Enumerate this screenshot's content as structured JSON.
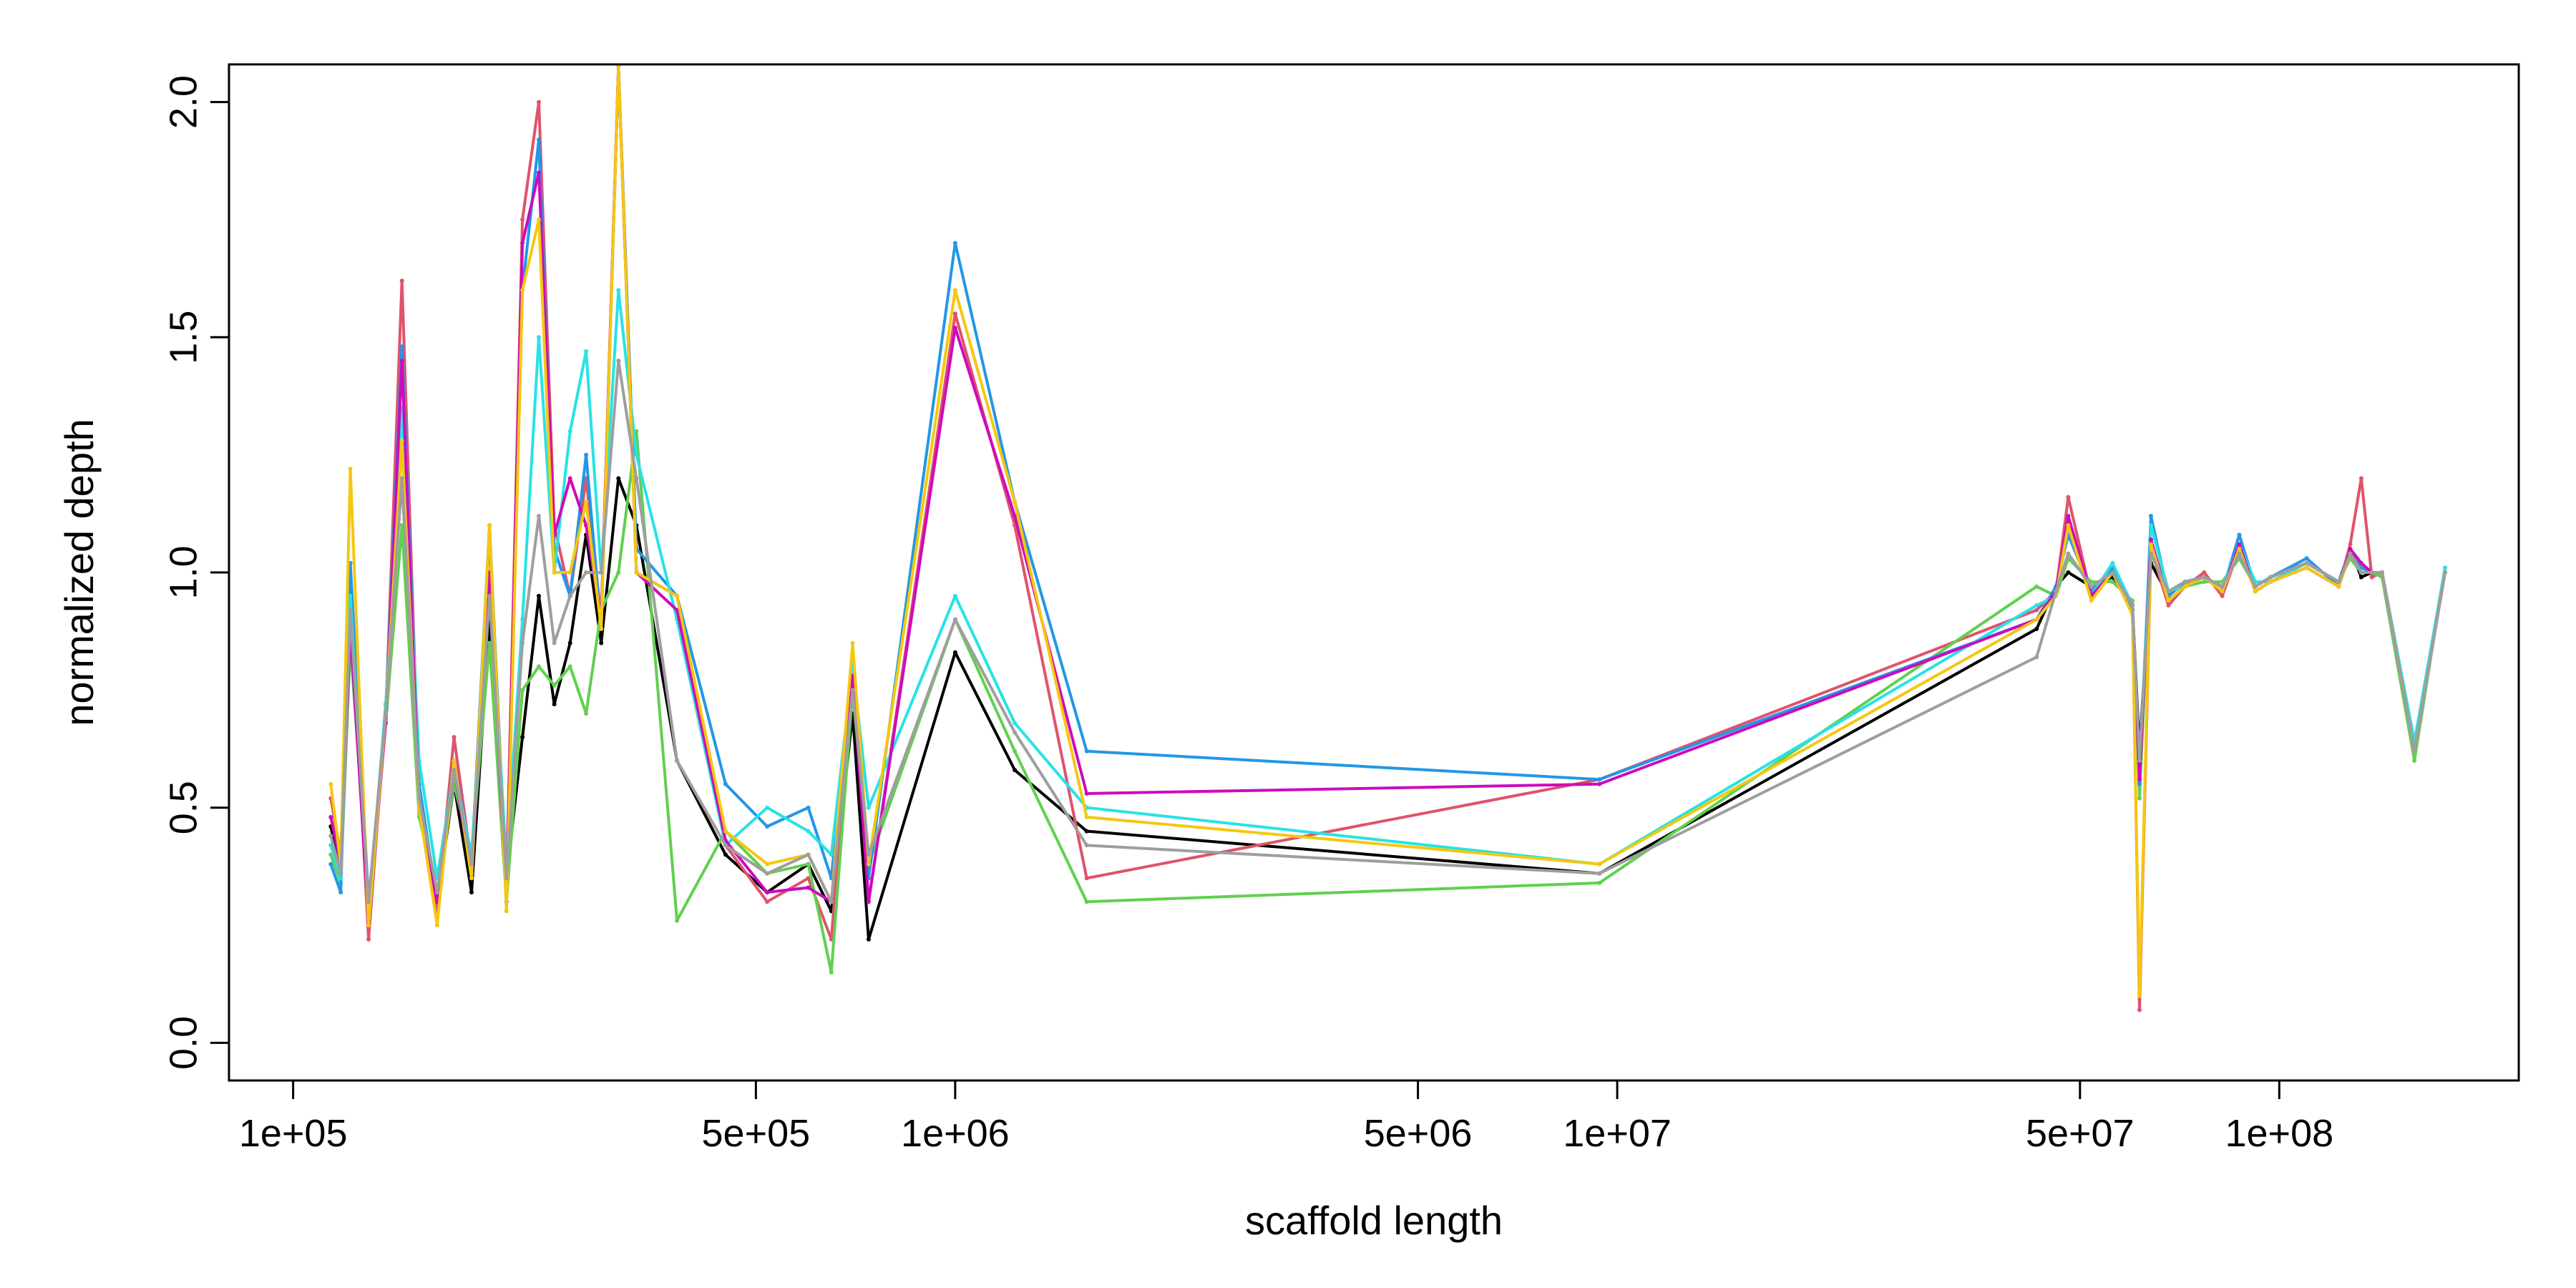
{
  "chart_data": {
    "type": "line",
    "title": "",
    "xlabel": "scaffold length",
    "ylabel": "normalized depth",
    "x_scale": "log",
    "xlim": [
      80000,
      230000000
    ],
    "ylim": [
      -0.08,
      2.08
    ],
    "x_ticks": [
      {
        "value": 100000,
        "label": "1e+05"
      },
      {
        "value": 500000,
        "label": "5e+05"
      },
      {
        "value": 1000000,
        "label": "1e+06"
      },
      {
        "value": 5000000,
        "label": "5e+06"
      },
      {
        "value": 10000000,
        "label": "1e+07"
      },
      {
        "value": 50000000,
        "label": "5e+07"
      },
      {
        "value": 100000000,
        "label": "1e+08"
      }
    ],
    "y_ticks": [
      {
        "value": 0.0,
        "label": "0.0"
      },
      {
        "value": 0.5,
        "label": "0.5"
      },
      {
        "value": 1.0,
        "label": "1.0"
      },
      {
        "value": 1.5,
        "label": "1.5"
      },
      {
        "value": 2.0,
        "label": "2.0"
      }
    ],
    "legend": "none",
    "grid": false,
    "x": [
      114000,
      118000,
      122000,
      130000,
      138000,
      146000,
      155000,
      165000,
      175000,
      186000,
      198000,
      210000,
      222000,
      235000,
      248000,
      262000,
      277000,
      292000,
      310000,
      330000,
      380000,
      450000,
      520000,
      600000,
      650000,
      700000,
      740000,
      1000000,
      1230000,
      1580000,
      9400000,
      43000000,
      46000000,
      48000000,
      52000000,
      56000000,
      60000000,
      61500000,
      64000000,
      68000000,
      72000000,
      77000000,
      82000000,
      87000000,
      92000000,
      97000000,
      110000000,
      123000000,
      128000000,
      133000000,
      138000000,
      143000000,
      160000000,
      178000000
    ],
    "series_colors": [
      "#000000",
      "#DF536B",
      "#61D04F",
      "#2297E6",
      "#28E2E5",
      "#CD0BBC",
      "#F5C710",
      "#9E9E9E"
    ],
    "series": [
      {
        "values": [
          0.46,
          0.36,
          0.9,
          0.27,
          0.72,
          1.2,
          0.52,
          0.3,
          0.55,
          0.32,
          0.9,
          0.35,
          0.65,
          0.95,
          0.72,
          0.85,
          1.08,
          0.85,
          1.2,
          1.1,
          0.6,
          0.4,
          0.32,
          0.38,
          0.28,
          0.7,
          0.22,
          0.83,
          0.58,
          0.45,
          0.36,
          0.88,
          0.97,
          1.0,
          0.97,
          0.99,
          0.93,
          0.62,
          1.02,
          0.95,
          0.98,
          0.99,
          0.97,
          1.04,
          0.97,
          0.99,
          1.02,
          0.98,
          1.05,
          0.99,
          1.0,
          1.0,
          0.62,
          1.0
        ]
      },
      {
        "values": [
          0.52,
          0.4,
          0.95,
          0.22,
          0.7,
          1.62,
          0.52,
          0.28,
          0.65,
          0.38,
          1.08,
          0.34,
          1.75,
          2.0,
          1.1,
          0.95,
          1.2,
          0.9,
          2.3,
          1.0,
          0.95,
          0.42,
          0.3,
          0.35,
          0.22,
          0.8,
          0.3,
          1.55,
          1.1,
          0.35,
          0.56,
          0.92,
          0.96,
          1.16,
          0.95,
          1.0,
          0.92,
          0.07,
          1.05,
          0.93,
          0.97,
          1.0,
          0.95,
          1.05,
          0.96,
          0.98,
          1.01,
          0.97,
          1.06,
          1.2,
          0.99,
          1.0,
          0.63,
          1.0
        ]
      },
      {
        "values": [
          0.4,
          0.34,
          0.85,
          0.3,
          0.68,
          1.1,
          0.48,
          0.32,
          0.55,
          0.4,
          0.85,
          0.3,
          0.75,
          0.8,
          0.76,
          0.8,
          0.7,
          0.92,
          1.0,
          1.3,
          0.26,
          0.45,
          0.36,
          0.38,
          0.15,
          0.75,
          0.38,
          0.9,
          0.62,
          0.3,
          0.34,
          0.97,
          0.95,
          1.03,
          0.98,
          0.98,
          0.94,
          0.52,
          1.06,
          0.96,
          0.97,
          0.98,
          0.98,
          1.03,
          0.97,
          0.99,
          1.02,
          0.98,
          1.03,
          1.0,
          1.0,
          0.99,
          0.6,
          1.01
        ]
      },
      {
        "values": [
          0.38,
          0.32,
          1.02,
          0.3,
          0.7,
          1.48,
          0.55,
          0.3,
          0.6,
          0.38,
          1.1,
          0.32,
          1.6,
          1.92,
          1.05,
          0.95,
          1.25,
          0.88,
          2.3,
          1.05,
          0.95,
          0.55,
          0.46,
          0.5,
          0.35,
          0.82,
          0.35,
          1.7,
          1.15,
          0.62,
          0.56,
          0.9,
          0.97,
          1.08,
          0.96,
          1.01,
          0.92,
          0.55,
          1.12,
          0.95,
          0.98,
          0.99,
          0.96,
          1.08,
          0.97,
          0.99,
          1.03,
          0.97,
          1.04,
          1.01,
          1.0,
          1.0,
          0.64,
          1.0
        ]
      },
      {
        "values": [
          0.42,
          0.35,
          0.95,
          0.28,
          0.72,
          1.35,
          0.6,
          0.35,
          0.58,
          0.4,
          1.0,
          0.38,
          0.9,
          1.5,
          1.0,
          1.3,
          1.47,
          1.0,
          1.6,
          1.25,
          0.9,
          0.42,
          0.5,
          0.45,
          0.4,
          0.8,
          0.5,
          0.95,
          0.68,
          0.5,
          0.38,
          0.93,
          0.95,
          1.1,
          0.95,
          1.02,
          0.93,
          0.58,
          1.1,
          0.96,
          0.97,
          0.99,
          0.97,
          1.06,
          0.98,
          0.98,
          1.02,
          0.98,
          1.04,
          1.0,
          1.0,
          1.0,
          0.64,
          1.01
        ]
      },
      {
        "values": [
          0.48,
          0.38,
          0.88,
          0.26,
          0.68,
          1.45,
          0.5,
          0.3,
          0.58,
          0.36,
          1.0,
          0.3,
          1.7,
          1.85,
          1.08,
          1.2,
          1.1,
          0.9,
          2.2,
          1.0,
          0.92,
          0.43,
          0.32,
          0.33,
          0.3,
          0.78,
          0.3,
          1.52,
          1.12,
          0.53,
          0.55,
          0.9,
          0.96,
          1.12,
          0.95,
          1.0,
          0.93,
          0.56,
          1.07,
          0.94,
          0.97,
          0.99,
          0.96,
          1.06,
          0.96,
          0.98,
          1.01,
          0.97,
          1.05,
          1.02,
          1.0,
          1.0,
          0.62,
          1.0
        ]
      },
      {
        "values": [
          0.55,
          0.38,
          1.22,
          0.25,
          0.7,
          1.28,
          0.5,
          0.25,
          0.6,
          0.35,
          1.1,
          0.28,
          1.6,
          1.75,
          1.0,
          1.0,
          1.15,
          0.88,
          2.3,
          1.0,
          0.95,
          0.45,
          0.38,
          0.4,
          0.3,
          0.85,
          0.38,
          1.6,
          1.15,
          0.48,
          0.38,
          0.9,
          0.95,
          1.1,
          0.94,
          1.0,
          0.91,
          0.1,
          1.06,
          0.94,
          0.97,
          0.99,
          0.96,
          1.05,
          0.96,
          0.98,
          1.01,
          0.97,
          1.04,
          1.0,
          1.0,
          1.0,
          0.62,
          1.0
        ]
      },
      {
        "values": [
          0.44,
          0.36,
          0.92,
          0.3,
          0.7,
          1.2,
          0.52,
          0.32,
          0.58,
          0.38,
          0.95,
          0.35,
          0.85,
          1.12,
          0.85,
          0.95,
          1.0,
          1.0,
          1.45,
          1.2,
          0.6,
          0.42,
          0.36,
          0.4,
          0.3,
          0.75,
          0.4,
          0.9,
          0.66,
          0.42,
          0.36,
          0.82,
          0.96,
          1.04,
          0.97,
          1.0,
          0.93,
          0.6,
          1.04,
          0.96,
          0.98,
          0.99,
          0.97,
          1.04,
          0.97,
          0.99,
          1.02,
          0.98,
          1.04,
          1.0,
          1.0,
          1.0,
          0.62,
          1.0
        ]
      }
    ]
  }
}
